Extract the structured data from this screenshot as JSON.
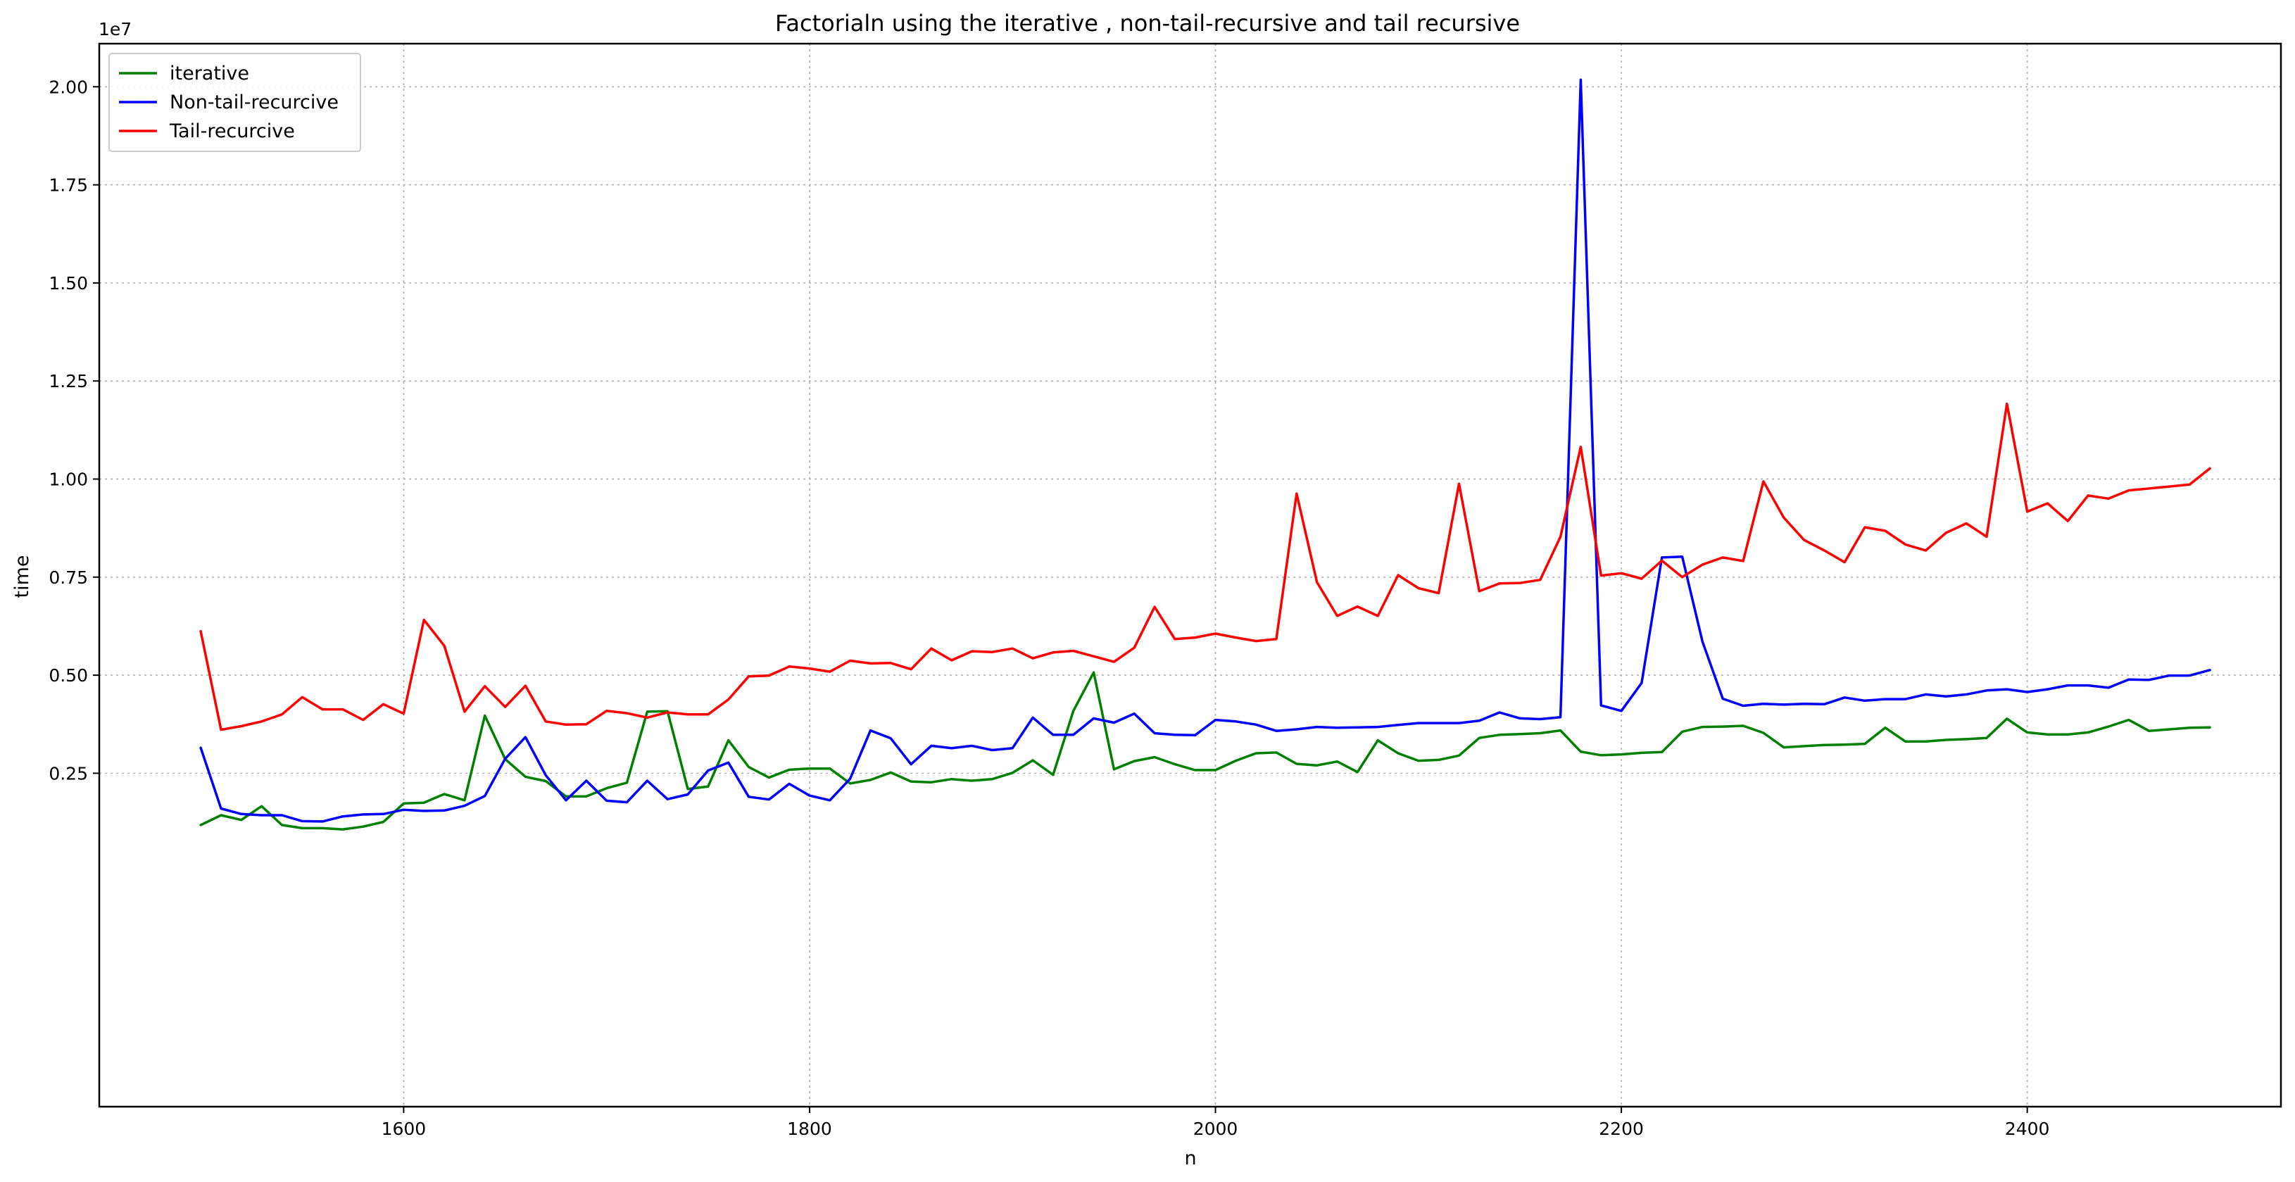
{
  "chart_data": {
    "type": "line",
    "title": "Factorialn using the iterative , non-tail-recursive and tail recursive",
    "xlabel": "n",
    "ylabel": "time",
    "y_offset_label": "1e7",
    "xlim": [
      1450,
      2525
    ],
    "ylim": [
      -0.6,
      2.11
    ],
    "y_scale_note": "values in units of 1e7",
    "x_ticks": [
      1600,
      1800,
      2000,
      2200,
      2400
    ],
    "x_tick_labels": [
      "1600",
      "1800",
      "2000",
      "2200",
      "2400"
    ],
    "y_ticks": [
      0.25,
      0.5,
      0.75,
      1.0,
      1.25,
      1.5,
      1.75,
      2.0
    ],
    "y_tick_labels": [
      "0.25",
      "0.50",
      "0.75",
      "1.00",
      "1.25",
      "1.50",
      "1.75",
      "2.00"
    ],
    "grid": true,
    "legend_position": "top-left",
    "x": [
      1500,
      1510,
      1520,
      1530,
      1540,
      1550,
      1560,
      1570,
      1580,
      1590,
      1600,
      1610,
      1620,
      1630,
      1640,
      1650,
      1660,
      1670,
      1680,
      1690,
      1700,
      1710,
      1720,
      1730,
      1740,
      1750,
      1760,
      1770,
      1780,
      1790,
      1800,
      1810,
      1820,
      1830,
      1840,
      1850,
      1860,
      1870,
      1880,
      1890,
      1900,
      1910,
      1920,
      1930,
      1940,
      1950,
      1960,
      1970,
      1980,
      1990,
      2000,
      2010,
      2020,
      2030,
      2040,
      2050,
      2060,
      2070,
      2080,
      2090,
      2100,
      2110,
      2120,
      2130,
      2140,
      2150,
      2160,
      2170,
      2180,
      2190,
      2200,
      2210,
      2220,
      2230,
      2240,
      2250,
      2260,
      2270,
      2280,
      2290,
      2300,
      2310,
      2320,
      2330,
      2340,
      2350,
      2360,
      2370,
      2380,
      2390,
      2400,
      2410,
      2420,
      2430,
      2440,
      2450,
      2460,
      2470,
      2480,
      2490
    ],
    "series": [
      {
        "name": "iterative",
        "color": "#008000",
        "values": [
          0.118,
          0.143,
          0.131,
          0.166,
          0.118,
          0.11,
          0.11,
          0.107,
          0.114,
          0.126,
          0.173,
          0.175,
          0.197,
          0.181,
          0.397,
          0.286,
          0.241,
          0.23,
          0.191,
          0.191,
          0.212,
          0.226,
          0.407,
          0.408,
          0.21,
          0.216,
          0.334,
          0.266,
          0.239,
          0.259,
          0.262,
          0.262,
          0.224,
          0.233,
          0.252,
          0.229,
          0.227,
          0.235,
          0.231,
          0.235,
          0.251,
          0.283,
          0.246,
          0.409,
          0.507,
          0.26,
          0.281,
          0.291,
          0.273,
          0.258,
          0.258,
          0.282,
          0.301,
          0.303,
          0.274,
          0.27,
          0.28,
          0.253,
          0.334,
          0.301,
          0.282,
          0.284,
          0.295,
          0.34,
          0.348,
          0.35,
          0.352,
          0.359,
          0.305,
          0.296,
          0.298,
          0.302,
          0.304,
          0.356,
          0.368,
          0.369,
          0.371,
          0.353,
          0.316,
          0.319,
          0.322,
          0.323,
          0.325,
          0.366,
          0.331,
          0.331,
          0.335,
          0.337,
          0.34,
          0.389,
          0.354,
          0.349,
          0.349,
          0.354,
          0.369,
          0.386,
          0.358,
          0.362,
          0.366,
          0.367
        ]
      },
      {
        "name": "Non-tail-recurcive",
        "color": "#0000ff",
        "values": [
          0.315,
          0.16,
          0.146,
          0.143,
          0.143,
          0.128,
          0.127,
          0.14,
          0.145,
          0.146,
          0.157,
          0.154,
          0.155,
          0.167,
          0.192,
          0.287,
          0.342,
          0.245,
          0.181,
          0.231,
          0.18,
          0.176,
          0.231,
          0.184,
          0.196,
          0.257,
          0.277,
          0.19,
          0.183,
          0.223,
          0.193,
          0.181,
          0.236,
          0.359,
          0.339,
          0.273,
          0.32,
          0.314,
          0.32,
          0.309,
          0.314,
          0.392,
          0.348,
          0.348,
          0.39,
          0.379,
          0.402,
          0.352,
          0.348,
          0.347,
          0.386,
          0.382,
          0.374,
          0.358,
          0.362,
          0.368,
          0.366,
          0.367,
          0.368,
          0.373,
          0.378,
          0.378,
          0.378,
          0.384,
          0.405,
          0.39,
          0.388,
          0.393,
          2.018,
          0.423,
          0.409,
          0.48,
          0.8,
          0.802,
          0.585,
          0.44,
          0.422,
          0.427,
          0.425,
          0.427,
          0.426,
          0.443,
          0.435,
          0.439,
          0.439,
          0.451,
          0.446,
          0.451,
          0.461,
          0.464,
          0.457,
          0.464,
          0.474,
          0.474,
          0.468,
          0.489,
          0.488,
          0.499,
          0.499,
          0.513
        ]
      },
      {
        "name": "Tail-recurcive",
        "color": "#ff0000",
        "values": [
          0.612,
          0.361,
          0.37,
          0.382,
          0.4,
          0.444,
          0.413,
          0.413,
          0.386,
          0.426,
          0.402,
          0.641,
          0.575,
          0.407,
          0.472,
          0.419,
          0.473,
          0.382,
          0.374,
          0.375,
          0.409,
          0.403,
          0.392,
          0.405,
          0.4,
          0.4,
          0.438,
          0.497,
          0.499,
          0.522,
          0.517,
          0.509,
          0.537,
          0.53,
          0.531,
          0.515,
          0.568,
          0.538,
          0.561,
          0.559,
          0.568,
          0.543,
          0.558,
          0.562,
          0.548,
          0.534,
          0.57,
          0.674,
          0.592,
          0.596,
          0.606,
          0.596,
          0.587,
          0.592,
          0.963,
          0.737,
          0.651,
          0.675,
          0.651,
          0.755,
          0.722,
          0.709,
          0.988,
          0.714,
          0.734,
          0.735,
          0.743,
          0.853,
          1.082,
          0.754,
          0.76,
          0.746,
          0.792,
          0.75,
          0.782,
          0.8,
          0.791,
          0.994,
          0.902,
          0.845,
          0.818,
          0.788,
          0.877,
          0.868,
          0.833,
          0.818,
          0.863,
          0.887,
          0.853,
          1.192,
          0.917,
          0.938,
          0.893,
          0.958,
          0.95,
          0.971,
          0.976,
          0.981,
          0.986,
          1.027
        ]
      }
    ]
  }
}
